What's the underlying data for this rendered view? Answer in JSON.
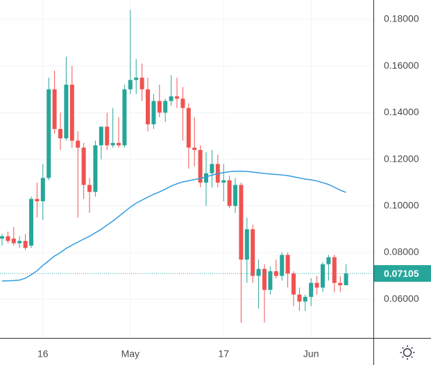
{
  "chart_data": {
    "type": "candlestick",
    "categories": [
      null,
      null,
      null,
      null,
      null,
      null,
      null,
      "16",
      null,
      null,
      null,
      null,
      null,
      null,
      null,
      null,
      null,
      null,
      null,
      null,
      null,
      null,
      "May",
      null,
      null,
      null,
      null,
      null,
      null,
      null,
      null,
      null,
      null,
      null,
      null,
      null,
      null,
      null,
      "17",
      null,
      null,
      null,
      null,
      null,
      null,
      null,
      null,
      null,
      null,
      null,
      null,
      null,
      null,
      "Jun",
      null,
      null,
      null,
      null,
      null,
      null
    ],
    "open": [
      0.086,
      0.087,
      0.086,
      0.084,
      0.085,
      0.083,
      0.103,
      0.102,
      0.112,
      0.15,
      0.133,
      0.129,
      0.152,
      0.128,
      0.125,
      0.109,
      0.106,
      0.126,
      0.134,
      0.126,
      0.127,
      0.126,
      0.15,
      0.154,
      0.155,
      0.15,
      0.135,
      0.145,
      0.14,
      0.145,
      0.147,
      0.146,
      0.142,
      0.125,
      0.124,
      0.11,
      0.114,
      0.118,
      0.11,
      0.111,
      0.1,
      0.109,
      0.077,
      0.09,
      0.07,
      0.073,
      0.064,
      0.072,
      0.07,
      0.079,
      0.071,
      0.062,
      0.059,
      0.061,
      0.067,
      0.065,
      0.075,
      0.078,
      0.067,
      0.066
    ],
    "high": [
      0.088,
      0.089,
      0.091,
      0.087,
      0.088,
      0.104,
      0.11,
      0.118,
      0.155,
      0.158,
      0.14,
      0.164,
      0.16,
      0.132,
      0.127,
      0.112,
      0.128,
      0.134,
      0.14,
      0.142,
      0.138,
      0.152,
      0.184,
      0.163,
      0.161,
      0.155,
      0.148,
      0.152,
      0.146,
      0.156,
      0.155,
      0.151,
      0.144,
      0.138,
      0.126,
      0.123,
      0.124,
      0.122,
      0.118,
      0.113,
      0.112,
      0.11,
      0.095,
      0.092,
      0.077,
      0.075,
      0.074,
      0.077,
      0.08,
      0.08,
      0.072,
      0.065,
      0.062,
      0.069,
      0.07,
      0.076,
      0.079,
      0.079,
      0.07,
      0.075
    ],
    "low": [
      0.083,
      0.084,
      0.083,
      0.082,
      0.081,
      0.082,
      0.095,
      0.094,
      0.111,
      0.131,
      0.124,
      0.128,
      0.125,
      0.095,
      0.103,
      0.097,
      0.104,
      0.12,
      0.124,
      0.125,
      0.125,
      0.125,
      0.148,
      0.148,
      0.145,
      0.132,
      0.133,
      0.138,
      0.136,
      0.143,
      0.142,
      0.128,
      0.116,
      0.117,
      0.108,
      0.1,
      0.108,
      0.108,
      0.102,
      0.099,
      0.097,
      0.05,
      0.067,
      0.067,
      0.056,
      0.05,
      0.062,
      0.069,
      0.068,
      0.065,
      0.057,
      0.055,
      0.055,
      0.057,
      0.062,
      0.063,
      0.068,
      0.063,
      0.063,
      0.066
    ],
    "close": [
      0.087,
      0.085,
      0.084,
      0.085,
      0.082,
      0.103,
      0.102,
      0.112,
      0.15,
      0.133,
      0.129,
      0.152,
      0.128,
      0.125,
      0.109,
      0.106,
      0.126,
      0.134,
      0.126,
      0.127,
      0.126,
      0.15,
      0.154,
      0.155,
      0.15,
      0.135,
      0.145,
      0.14,
      0.145,
      0.147,
      0.146,
      0.142,
      0.125,
      0.124,
      0.11,
      0.114,
      0.118,
      0.11,
      0.111,
      0.1,
      0.109,
      0.077,
      0.09,
      0.07,
      0.073,
      0.064,
      0.072,
      0.07,
      0.079,
      0.071,
      0.062,
      0.059,
      0.061,
      0.067,
      0.065,
      0.075,
      0.078,
      0.067,
      0.066,
      0.07105
    ],
    "up_color": "#26a69a",
    "down_color": "#ef5350",
    "moving_average": {
      "color": "#2f9be0",
      "values": [
        0.0678,
        0.0679,
        0.068,
        0.0682,
        0.069,
        0.0705,
        0.0722,
        0.0745,
        0.0765,
        0.0785,
        0.08,
        0.0818,
        0.0832,
        0.0845,
        0.0858,
        0.087,
        0.0885,
        0.09,
        0.0918,
        0.0935,
        0.0955,
        0.0975,
        0.0995,
        0.1012,
        0.1025,
        0.1038,
        0.105,
        0.106,
        0.1072,
        0.1085,
        0.1095,
        0.1103,
        0.1108,
        0.1113,
        0.1118,
        0.1125,
        0.1132,
        0.1138,
        0.1143,
        0.1147,
        0.1149,
        0.1149,
        0.1148,
        0.1145,
        0.1142,
        0.1139,
        0.1137,
        0.1135,
        0.1133,
        0.113,
        0.1125,
        0.112,
        0.1115,
        0.1112,
        0.1107,
        0.11,
        0.1092,
        0.108,
        0.1068,
        0.1058
      ]
    },
    "ylim": [
      0.0434,
      0.1883
    ],
    "yticks": [
      {
        "value": 0.06,
        "label": "0.06000"
      },
      {
        "value": 0.08,
        "label": "0.08000"
      },
      {
        "value": 0.1,
        "label": "0.10000"
      },
      {
        "value": 0.12,
        "label": "0.12000"
      },
      {
        "value": 0.14,
        "label": "0.14000"
      },
      {
        "value": 0.16,
        "label": "0.16000"
      },
      {
        "value": 0.18,
        "label": "0.18000"
      }
    ],
    "grid": true
  }
}
